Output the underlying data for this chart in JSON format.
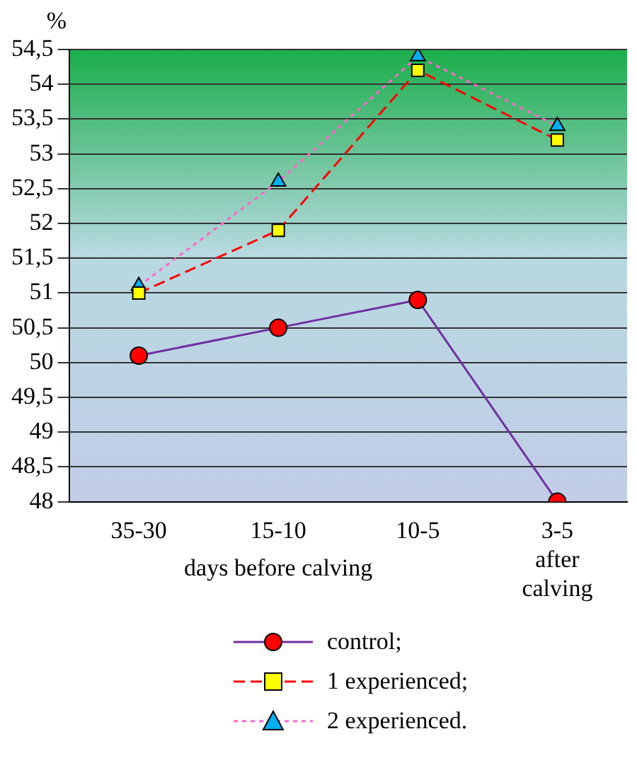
{
  "chart_data": {
    "type": "line",
    "ylabel": "%",
    "xlabel": "days before calving",
    "categories": [
      "35-30",
      "15-10",
      "10-5",
      "3-5 after calving"
    ],
    "ylim": [
      48,
      54.5
    ],
    "yticks": [
      48,
      {
        "value": 48.5,
        "label": "48,5"
      },
      49,
      {
        "value": 49.5,
        "label": "49,5"
      },
      50,
      {
        "value": 50.5,
        "label": "50,5"
      },
      51,
      {
        "value": 51.5,
        "label": "51,5"
      },
      52,
      {
        "value": 52.5,
        "label": "52,5"
      },
      53,
      {
        "value": 53.5,
        "label": "53,5"
      },
      54,
      {
        "value": 54.5,
        "label": "54,5"
      }
    ],
    "grid": "y",
    "legend": "bottom",
    "series": [
      {
        "name": "control;",
        "color": "#7030a0",
        "colors": [
          "#ff0000",
          "#ff0000",
          "#ff0000",
          "#ff0000"
        ],
        "marker": "circle",
        "line_style": "solid",
        "values": [
          50.1,
          50.5,
          50.9,
          48.0
        ]
      },
      {
        "name": "1 experienced;",
        "color": "#ff0000",
        "colors": [
          "#ffff00",
          "#ffff00",
          "#ffff00",
          "#ffff00"
        ],
        "marker": "square",
        "line_style": "dashed",
        "values": [
          51.0,
          51.9,
          54.2,
          53.2
        ]
      },
      {
        "name": "2 experienced.",
        "color": "#ff66cc",
        "colors": [
          "#00b0f0",
          "#00b0f0",
          "#00b0f0",
          "#00b0f0"
        ],
        "marker": "triangle",
        "line_style": "dotted",
        "values": [
          51.1,
          52.6,
          54.4,
          53.4
        ]
      }
    ]
  }
}
